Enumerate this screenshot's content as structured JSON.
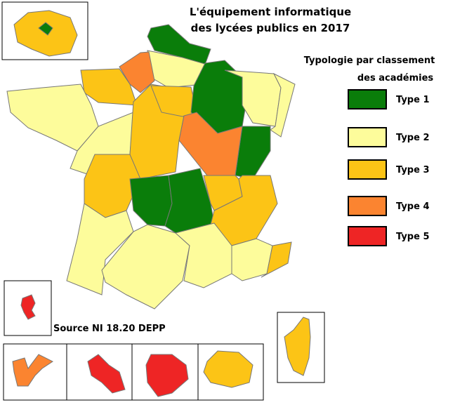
{
  "title": [
    "L'équipement informatique",
    "des lycées  publics en 2017"
  ],
  "legend": {
    "title": [
      "Typologie par classement",
      "des académies"
    ],
    "items": [
      {
        "label": "Type 1",
        "color": "#0a7d0a"
      },
      {
        "label": "Type 2",
        "color": "#fdfc9b"
      },
      {
        "label": "Type 3",
        "color": "#fcc416"
      },
      {
        "label": "Type 4",
        "color": "#fb8430"
      },
      {
        "label": "Type 5",
        "color": "#ee2525"
      }
    ]
  },
  "source": "Source NI 18.20  DEPP"
}
